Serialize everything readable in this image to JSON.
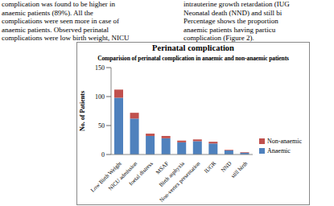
{
  "text": {
    "left": [
      "complication was found to be higher in",
      "anaemic patients (89%). All the",
      "complications were seen more in case of",
      "anaemic patients. Observed perinatal",
      "complications were low birth weight, NICU"
    ],
    "right": [
      "intrauterine growth retardation (IUG",
      "Neonatal death (NND) and still bi",
      "Percentage shows the proportion",
      "anaemic patients having particu",
      "complication (Figure 2)."
    ]
  },
  "chart_data": {
    "type": "bar",
    "stacked": true,
    "title": "Perinatal complication",
    "subtitle": "Comparision of perinatal complication in anaemic and non-anaemic patients",
    "y_label": "No. of Patients",
    "categories": [
      "Low Birth Weight",
      "NICU admission",
      "foetal distress",
      "MSAF",
      "Birth asphyxia",
      "Non-vertex presentation",
      "IUGR",
      "NND",
      "still birth"
    ],
    "series": [
      {
        "name": "Anaemic",
        "color": "#4f81bd",
        "values": [
          98,
          62,
          32,
          28,
          21,
          23,
          19,
          7,
          3
        ]
      },
      {
        "name": "Non-anaemic",
        "color": "#c0504d",
        "values": [
          14,
          10,
          4,
          4,
          3,
          3,
          3,
          1,
          1
        ]
      }
    ],
    "ylim": [
      0,
      150
    ],
    "yticks": [
      0,
      50,
      100,
      150
    ],
    "legend": "right"
  }
}
